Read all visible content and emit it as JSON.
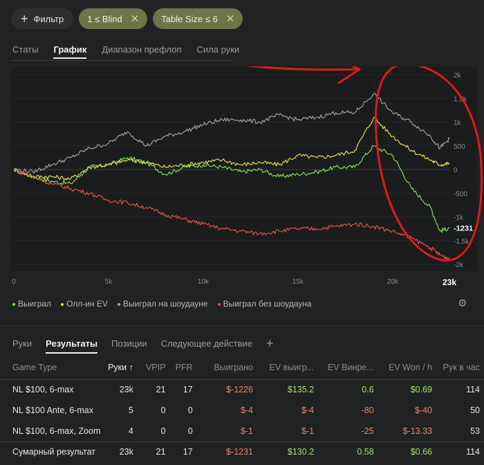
{
  "filters": {
    "add_label": "Фильтр",
    "chips": [
      {
        "label": "1 ≤ Blind"
      },
      {
        "label": "Table Size ≤ 6"
      }
    ]
  },
  "top_tabs": [
    "Статы",
    "График",
    "Диапазон префлоп",
    "Сила руки"
  ],
  "active_top_tab": "График",
  "chart_data": {
    "type": "line",
    "xlabel": "",
    "ylabel": "",
    "xlim": [
      0,
      23000
    ],
    "ylim": [
      -2000,
      2000
    ],
    "x_ticks": [
      {
        "value": 0,
        "label": "0"
      },
      {
        "value": 5000,
        "label": "5k"
      },
      {
        "value": 10000,
        "label": "10k"
      },
      {
        "value": 15000,
        "label": "15k"
      },
      {
        "value": 20000,
        "label": "20k"
      }
    ],
    "x_end_label": "23k",
    "y_ticks": [
      {
        "value": 2000,
        "label": "2k"
      },
      {
        "value": 1500,
        "label": "1.5k"
      },
      {
        "value": 1000,
        "label": "1k"
      },
      {
        "value": 500,
        "label": "500"
      },
      {
        "value": 0,
        "label": "0"
      },
      {
        "value": -500,
        "label": "-500"
      },
      {
        "value": -1000,
        "label": "-1k"
      },
      {
        "value": -1500,
        "label": "-1.5k"
      },
      {
        "value": -2000,
        "label": "-2k"
      }
    ],
    "end_value_label": "-1231",
    "x": [
      0,
      1000,
      2000,
      3000,
      4000,
      5000,
      6000,
      7000,
      8000,
      9000,
      10000,
      11000,
      12000,
      13000,
      14000,
      15000,
      16000,
      17000,
      18000,
      19000,
      20000,
      21000,
      22000,
      22500,
      23000
    ],
    "series": [
      {
        "name": "Выиграл",
        "color": "#7ee05a",
        "values": [
          0,
          -150,
          -250,
          -300,
          50,
          100,
          250,
          150,
          -100,
          50,
          100,
          50,
          -50,
          0,
          -150,
          -100,
          -50,
          50,
          50,
          500,
          300,
          -400,
          -800,
          -1300,
          -1231
        ]
      },
      {
        "name": "Олл-ин EV",
        "color": "#e6dd4e",
        "values": [
          0,
          -150,
          -150,
          -200,
          50,
          100,
          200,
          150,
          50,
          100,
          150,
          200,
          100,
          150,
          100,
          300,
          250,
          300,
          400,
          1100,
          700,
          400,
          200,
          100,
          130
        ]
      },
      {
        "name": "Выиграл на шоудауне",
        "color": "#a3a3a3",
        "values": [
          0,
          -50,
          100,
          250,
          450,
          550,
          800,
          500,
          700,
          800,
          950,
          1050,
          1050,
          1000,
          1150,
          1050,
          1100,
          1200,
          1200,
          1600,
          1200,
          1000,
          700,
          450,
          650
        ]
      },
      {
        "name": "Выиграл без шоудауна",
        "color": "#e3514b",
        "values": [
          0,
          -150,
          -300,
          -400,
          -500,
          -650,
          -700,
          -800,
          -950,
          -1050,
          -1150,
          -1250,
          -1300,
          -1350,
          -1300,
          -1250,
          -1250,
          -1200,
          -1150,
          -1200,
          -1300,
          -1450,
          -1650,
          -1800,
          -1880
        ]
      }
    ],
    "grid": true,
    "legend_placement": "bottom-left"
  },
  "legend": [
    {
      "label": "Выиграл",
      "color": "#7ee05a"
    },
    {
      "label": "Олл-ин EV",
      "color": "#e6dd4e"
    },
    {
      "label": "Выиграл на шоудауне",
      "color": "#a3a3a3"
    },
    {
      "label": "Выиграл без шоудауна",
      "color": "#e3514b"
    }
  ],
  "annotation_color": "#e01a1a",
  "bottom_tabs": [
    "Руки",
    "Результаты",
    "Позиции",
    "Следующее действие"
  ],
  "active_bottom_tab": "Результаты",
  "table": {
    "headers": [
      "Game Type",
      "Руки ↑",
      "VPIP",
      "PFR",
      "Выиграно",
      "EV выигр...",
      "EV Винре...",
      "EV Won / h",
      "Рук в час"
    ],
    "rows": [
      [
        "NL $100, 6-max",
        "23k",
        "21",
        "17",
        "$-1226",
        "$135.2",
        "0.6",
        "$0.69",
        "114"
      ],
      [
        "NL $100 Ante, 6-max",
        "5",
        "0",
        "0",
        "$-4",
        "$-4",
        "-80",
        "$-40",
        "50"
      ],
      [
        "NL $100, 6-max, Zoom",
        "4",
        "0",
        "0",
        "$-1",
        "$-1",
        "-25",
        "$-13.33",
        "53"
      ]
    ],
    "total": [
      "Сумарный результат",
      "23k",
      "21",
      "17",
      "$-1231",
      "$130.2",
      "0.58",
      "$0.66",
      "114"
    ]
  }
}
